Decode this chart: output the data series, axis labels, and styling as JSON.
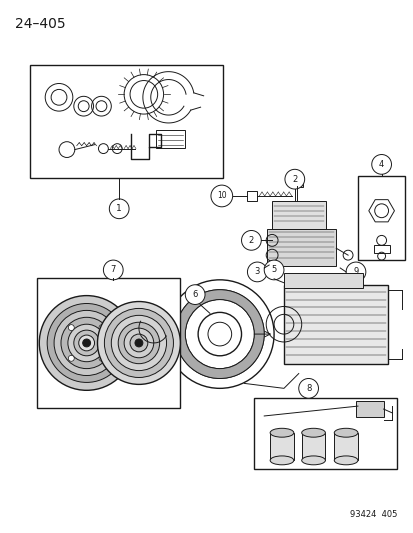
{
  "title": "24–405",
  "bg_color": "#ffffff",
  "fig_width": 4.14,
  "fig_height": 5.33,
  "dpi": 100,
  "footer_text": "93424  405",
  "line_color": "#1a1a1a",
  "gray_fill": "#c8c8c8"
}
